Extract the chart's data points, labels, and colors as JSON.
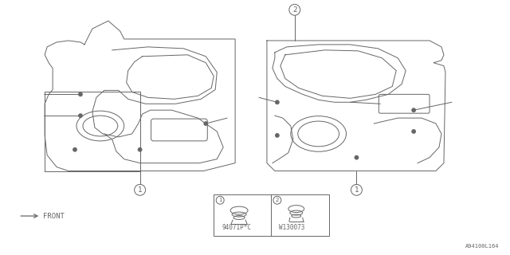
{
  "bg_color": "#ffffff",
  "line_color": "#666666",
  "part_number_left": "94071P*C",
  "part_number_right": "W130073",
  "front_label": "FRONT",
  "diagram_id": "A94100L164",
  "lw": 0.7
}
